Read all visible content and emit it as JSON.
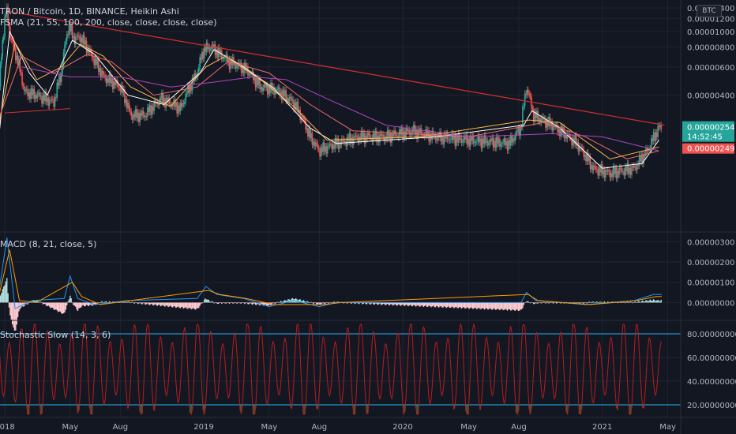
{
  "header": {
    "title": "TRON / Bitcoin, 1D, BINANCE, Heikin Ashi",
    "indicator": "FSMA (21, 55, 100, 200, close, close, close, close)",
    "currency": "BTC"
  },
  "colors": {
    "background": "#131722",
    "grid": "#1e2431",
    "up": "#26a69a",
    "down": "#ef5350",
    "trendline": "#d32f2f",
    "ma21": "#ffffff",
    "ma55": "#ffb74d",
    "ma100": "#ef6c6c",
    "ma200": "#ab47bc",
    "macd": "#2196f3",
    "signal": "#ff9800",
    "stoch": "#b71c1c",
    "band": "#29b6f6",
    "price_label_green": "#26a69a",
    "price_label_red": "#ef5350"
  },
  "x_axis": {
    "labels": [
      "2018",
      "May",
      "Aug",
      "2019",
      "May",
      "Aug",
      "2020",
      "May",
      "Aug",
      "2021",
      "May"
    ]
  },
  "chart_data": [
    {
      "type": "candlestick",
      "title": "TRON / Bitcoin, 1D, BINANCE, Heikin Ashi",
      "y_ticks": [
        "0.00000400",
        "0.00000600",
        "0.00000800",
        "0.00001000",
        "0.00001200",
        "0.00001400"
      ],
      "ylim": [
        6e-07,
        1.5e-05
      ],
      "close_path": [
        [
          "2017-12-20",
          3e-06
        ],
        [
          "2018-01-04",
          1.37e-05
        ],
        [
          "2018-01-12",
          9e-06
        ],
        [
          "2018-02-06",
          4.2e-06
        ],
        [
          "2018-03-01",
          4e-06
        ],
        [
          "2018-04-01",
          3.6e-06
        ],
        [
          "2018-04-15",
          5.5e-06
        ],
        [
          "2018-04-28",
          1.08e-05
        ],
        [
          "2018-05-08",
          9e-06
        ],
        [
          "2018-05-20",
          9.2e-06
        ],
        [
          "2018-06-10",
          7e-06
        ],
        [
          "2018-07-01",
          5.2e-06
        ],
        [
          "2018-08-01",
          4.5e-06
        ],
        [
          "2018-08-20",
          3e-06
        ],
        [
          "2018-09-15",
          3e-06
        ],
        [
          "2018-10-15",
          3.8e-06
        ],
        [
          "2018-11-20",
          3.3e-06
        ],
        [
          "2018-12-20",
          5.5e-06
        ],
        [
          "2019-01-01",
          7.7e-06
        ],
        [
          "2019-01-15",
          8e-06
        ],
        [
          "2019-02-15",
          6.5e-06
        ],
        [
          "2019-03-20",
          5.8e-06
        ],
        [
          "2019-04-15",
          4.5e-06
        ],
        [
          "2019-05-15",
          4.3e-06
        ],
        [
          "2019-06-15",
          3.6e-06
        ],
        [
          "2019-07-15",
          2.2e-06
        ],
        [
          "2019-08-01",
          1.8e-06
        ],
        [
          "2019-09-01",
          2e-06
        ],
        [
          "2019-10-15",
          2.2e-06
        ],
        [
          "2019-12-01",
          2.2e-06
        ],
        [
          "2020-01-20",
          2.4e-06
        ],
        [
          "2020-03-01",
          2.2e-06
        ],
        [
          "2020-05-01",
          2.1e-06
        ],
        [
          "2020-07-15",
          2e-06
        ],
        [
          "2020-08-05",
          2.5e-06
        ],
        [
          "2020-08-15",
          4.5e-06
        ],
        [
          "2020-08-28",
          3e-06
        ],
        [
          "2020-10-01",
          2.6e-06
        ],
        [
          "2020-11-15",
          2e-06
        ],
        [
          "2020-12-15",
          1.4e-06
        ],
        [
          "2021-01-15",
          1.3e-06
        ],
        [
          "2021-03-01",
          1.4e-06
        ],
        [
          "2021-03-25",
          1.8e-06
        ],
        [
          "2021-04-15",
          2.5e-06
        ]
      ],
      "ma_series": [
        {
          "key": "ma21",
          "points": [
            [
              "2017-12-20",
              2e-06
            ],
            [
              "2018-01-10",
              1e-05
            ],
            [
              "2018-02-15",
              5.5e-06
            ],
            [
              "2018-03-20",
              4e-06
            ],
            [
              "2018-05-05",
              8.8e-06
            ],
            [
              "2018-06-15",
              7.2e-06
            ],
            [
              "2018-08-15",
              4e-06
            ],
            [
              "2018-10-20",
              3.5e-06
            ],
            [
              "2018-12-25",
              5.5e-06
            ],
            [
              "2019-01-20",
              7.7e-06
            ],
            [
              "2019-03-15",
              6e-06
            ],
            [
              "2019-05-10",
              4.4e-06
            ],
            [
              "2019-07-15",
              2.5e-06
            ],
            [
              "2019-09-01",
              2e-06
            ],
            [
              "2020-03-01",
              2.2e-06
            ],
            [
              "2020-08-10",
              2.6e-06
            ],
            [
              "2020-08-25",
              3.2e-06
            ],
            [
              "2020-10-15",
              2.5e-06
            ],
            [
              "2021-01-01",
              1.4e-06
            ],
            [
              "2021-03-15",
              1.5e-06
            ],
            [
              "2021-04-15",
              2.1e-06
            ]
          ]
        },
        {
          "key": "ma55",
          "points": [
            [
              "2017-12-20",
              2.5e-06
            ],
            [
              "2018-01-20",
              8.5e-06
            ],
            [
              "2018-03-01",
              5e-06
            ],
            [
              "2018-04-15",
              6e-06
            ],
            [
              "2018-05-20",
              8.3e-06
            ],
            [
              "2018-07-01",
              7e-06
            ],
            [
              "2018-08-20",
              4.5e-06
            ],
            [
              "2018-11-01",
              3.4e-06
            ],
            [
              "2019-01-05",
              6e-06
            ],
            [
              "2019-02-10",
              7e-06
            ],
            [
              "2019-04-15",
              5e-06
            ],
            [
              "2019-06-15",
              3.4e-06
            ],
            [
              "2019-08-15",
              2.1e-06
            ],
            [
              "2020-02-01",
              2.2e-06
            ],
            [
              "2020-08-20",
              2.8e-06
            ],
            [
              "2020-10-15",
              2.7e-06
            ],
            [
              "2021-01-15",
              1.6e-06
            ],
            [
              "2021-04-15",
              1.9e-06
            ]
          ]
        },
        {
          "key": "ma100",
          "points": [
            [
              "2017-12-20",
              2.8e-06
            ],
            [
              "2018-02-01",
              7e-06
            ],
            [
              "2018-04-01",
              5.5e-06
            ],
            [
              "2018-06-01",
              7.2e-06
            ],
            [
              "2018-07-15",
              6.5e-06
            ],
            [
              "2018-10-01",
              4e-06
            ],
            [
              "2018-12-20",
              4.5e-06
            ],
            [
              "2019-02-15",
              6.5e-06
            ],
            [
              "2019-05-01",
              5.5e-06
            ],
            [
              "2019-07-15",
              3.5e-06
            ],
            [
              "2019-10-01",
              2.4e-06
            ],
            [
              "2020-05-01",
              2.2e-06
            ],
            [
              "2020-09-15",
              2.7e-06
            ],
            [
              "2020-12-01",
              2.2e-06
            ],
            [
              "2021-02-15",
              1.6e-06
            ],
            [
              "2021-04-15",
              1.8e-06
            ]
          ]
        },
        {
          "key": "ma200",
          "points": [
            [
              "2018-02-01",
              6e-06
            ],
            [
              "2018-05-01",
              5.2e-06
            ],
            [
              "2018-08-01",
              5.2e-06
            ],
            [
              "2018-11-01",
              4.5e-06
            ],
            [
              "2019-01-15",
              4.8e-06
            ],
            [
              "2019-04-01",
              5.2e-06
            ],
            [
              "2019-06-01",
              5e-06
            ],
            [
              "2019-08-15",
              3.8e-06
            ],
            [
              "2019-12-01",
              2.6e-06
            ],
            [
              "2020-05-01",
              2.2e-06
            ],
            [
              "2020-10-01",
              2.3e-06
            ],
            [
              "2021-01-01",
              2.2e-06
            ],
            [
              "2021-04-15",
              1.8e-06
            ]
          ]
        }
      ],
      "trendline": [
        [
          "2018-01-04",
          1.34e-05
        ],
        [
          "2021-04-25",
          2.6e-06
        ]
      ],
      "support_line": [
        [
          "2018-01-01",
          3.1e-06
        ],
        [
          "2018-05-01",
          3.3e-06
        ]
      ],
      "price_labels": [
        {
          "value": 2.54e-06,
          "text": "0.00000254",
          "countdown": "14:52:45",
          "color": "green"
        },
        {
          "value": 2.49e-06,
          "text": "0.00000249",
          "color": "red"
        }
      ]
    },
    {
      "type": "line",
      "title": "MACD (8, 21, close, 5)",
      "y_ticks": [
        "0.00000000",
        "0.00000100",
        "0.00000200",
        "0.00000300"
      ],
      "ylim": [
        -8e-07,
        3.4e-06
      ],
      "macd": [
        [
          "2017-12-20",
          3e-07
        ],
        [
          "2018-01-05",
          3.2e-06
        ],
        [
          "2018-01-20",
          -3e-07
        ],
        [
          "2018-02-20",
          1e-07
        ],
        [
          "2018-04-20",
          2e-07
        ],
        [
          "2018-05-01",
          1.3e-06
        ],
        [
          "2018-05-15",
          2e-07
        ],
        [
          "2018-06-15",
          -1e-07
        ],
        [
          "2018-08-15",
          1e-07
        ],
        [
          "2018-12-20",
          2e-07
        ],
        [
          "2019-01-05",
          8e-07
        ],
        [
          "2019-01-25",
          4e-07
        ],
        [
          "2019-03-15",
          2e-07
        ],
        [
          "2019-05-01",
          -2e-07
        ],
        [
          "2019-06-15",
          1e-07
        ],
        [
          "2019-08-01",
          -2e-07
        ],
        [
          "2019-09-01",
          0.0
        ],
        [
          "2020-08-05",
          0.0
        ],
        [
          "2020-08-15",
          5e-07
        ],
        [
          "2020-09-01",
          1e-07
        ],
        [
          "2020-12-01",
          -1e-07
        ],
        [
          "2021-03-01",
          1e-07
        ],
        [
          "2021-04-05",
          4e-07
        ],
        [
          "2021-04-20",
          4e-07
        ]
      ],
      "signal": [
        [
          "2017-12-20",
          2e-07
        ],
        [
          "2018-01-10",
          2.6e-06
        ],
        [
          "2018-01-28",
          1e-07
        ],
        [
          "2018-02-28",
          0.0
        ],
        [
          "2018-05-05",
          1e-06
        ],
        [
          "2018-05-22",
          3e-07
        ],
        [
          "2018-06-25",
          -1e-07
        ],
        [
          "2018-08-20",
          1e-07
        ],
        [
          "2019-01-10",
          6e-07
        ],
        [
          "2019-01-30",
          4e-07
        ],
        [
          "2019-03-20",
          2e-07
        ],
        [
          "2019-05-10",
          -1e-07
        ],
        [
          "2019-08-10",
          -1e-07
        ],
        [
          "2019-09-10",
          0.0
        ],
        [
          "2020-08-18",
          4e-07
        ],
        [
          "2020-09-05",
          1e-07
        ],
        [
          "2020-12-10",
          -1e-07
        ],
        [
          "2021-03-05",
          1e-07
        ],
        [
          "2021-04-10",
          3e-07
        ],
        [
          "2021-04-20",
          3e-07
        ]
      ]
    },
    {
      "type": "line",
      "title": "Stochastic Slow (14, 3, 6)",
      "y_ticks": [
        "20.00000000",
        "40.00000000",
        "60.00000000",
        "80.00000000"
      ],
      "ylim": [
        10,
        90
      ],
      "bands": [
        20,
        80
      ],
      "k_period_days": 23,
      "k_phase_days": 8,
      "k_amplitude": 32,
      "k_mid": 50
    }
  ]
}
